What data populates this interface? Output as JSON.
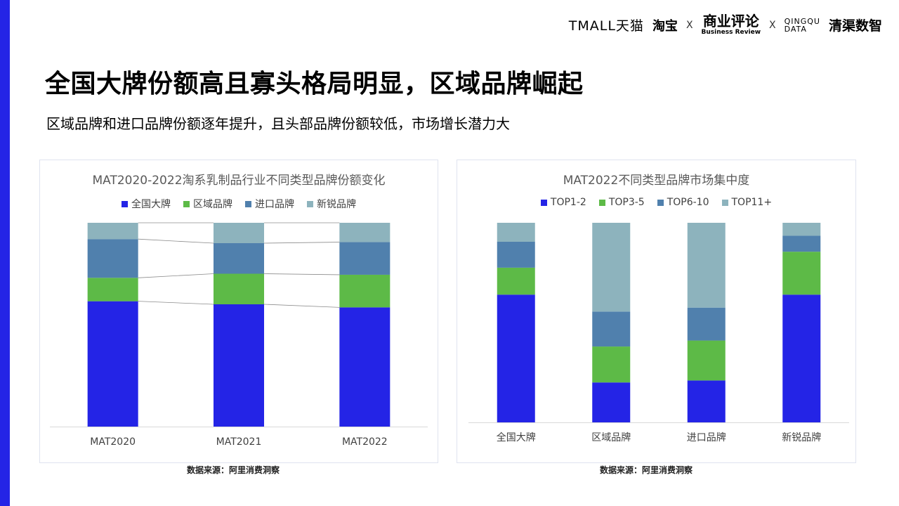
{
  "header": {
    "logos": {
      "tmall": "TMALL天猫",
      "taobao": "淘宝",
      "x1": "X",
      "business_review_cn": "商业评论",
      "business_review_en": "Business Review",
      "x2": "X",
      "qingqu_data_1": "QINGQU",
      "qingqu_data_2": "DATA",
      "qingqu_cn": "清渠数智"
    }
  },
  "title": "全国大牌份额高且寡头格局明显，区域品牌崛起",
  "subtitle": "区域品牌和进口品牌份额逐年提升，且头部品牌份额较低，市场增长潜力大",
  "colors": {
    "accent": "#2424e6",
    "s1": "#2424e6",
    "s2": "#5dba47",
    "s3": "#5080ad",
    "s4": "#8db3bd"
  },
  "chart_data": [
    {
      "type": "bar",
      "stacked": true,
      "percent": true,
      "title": "MAT2020-2022淘系乳制品行业不同类型品牌份额变化",
      "categories": [
        "MAT2020",
        "MAT2021",
        "MAT2022"
      ],
      "series": [
        {
          "name": "全国大牌",
          "values": [
            61.5,
            60.0,
            58.5
          ]
        },
        {
          "name": "区域品牌",
          "values": [
            11.5,
            15.0,
            16.0
          ]
        },
        {
          "name": "进口品牌",
          "values": [
            19.0,
            15.0,
            16.0
          ]
        },
        {
          "name": "新锐品牌",
          "values": [
            8.0,
            10.0,
            9.5
          ]
        }
      ],
      "ylim": [
        0,
        100
      ],
      "grid": false,
      "connector_lines": true,
      "legend": "top-center",
      "source": "数据来源：阿里消费洞察"
    },
    {
      "type": "bar",
      "stacked": true,
      "percent": true,
      "title": "MAT2022不同类型品牌市场集中度",
      "categories": [
        "全国大牌",
        "区域品牌",
        "进口品牌",
        "新锐品牌"
      ],
      "series": [
        {
          "name": "TOP1-2",
          "values": [
            64.0,
            20.0,
            21.0,
            64.0
          ]
        },
        {
          "name": "TOP3-5",
          "values": [
            13.5,
            18.0,
            20.0,
            21.5
          ]
        },
        {
          "name": "TOP6-10",
          "values": [
            13.0,
            17.5,
            16.5,
            8.0
          ]
        },
        {
          "name": "TOP11+",
          "values": [
            9.5,
            44.5,
            42.5,
            6.5
          ]
        }
      ],
      "ylim": [
        0,
        100
      ],
      "grid": false,
      "legend": "top-center",
      "source": "数据来源：阿里消费洞察"
    }
  ]
}
